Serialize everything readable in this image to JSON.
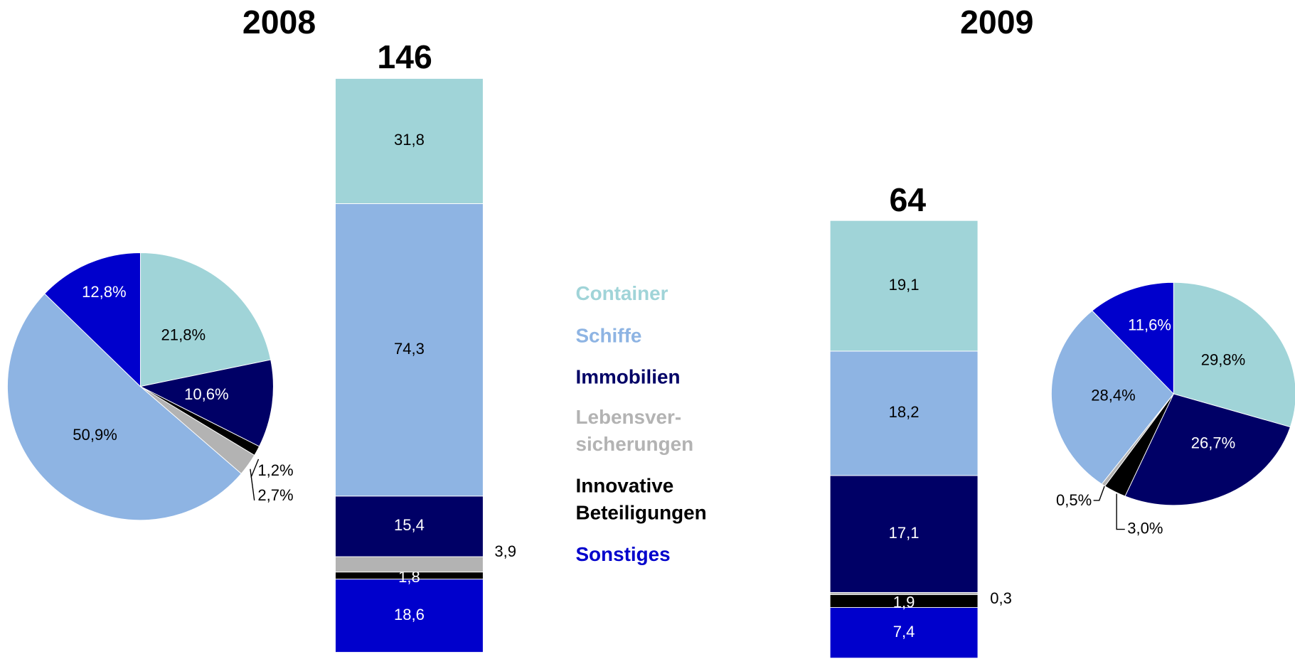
{
  "chart_data": [
    {
      "type": "pie",
      "title": "2008",
      "values": [
        21.8,
        10.6,
        1.2,
        2.7,
        50.9,
        12.8
      ],
      "value_labels": [
        "21,8%",
        "10,6%",
        "1,2%",
        "2,7%",
        "50,9%",
        "12,8%"
      ],
      "colors": [
        "#a0d4d8",
        "#000066",
        "#000000",
        "#b3b3b3",
        "#8eb4e3",
        "#0000cc"
      ]
    },
    {
      "type": "bar",
      "stacked": true,
      "total": 146,
      "series": [
        {
          "name": "Container",
          "color": "#a0d4d8",
          "values": [
            31.8
          ],
          "value_labels": [
            "31,8"
          ]
        },
        {
          "name": "Schiffe",
          "color": "#8eb4e3",
          "values": [
            74.3
          ],
          "value_labels": [
            "74,3"
          ]
        },
        {
          "name": "Immobilien",
          "color": "#000066",
          "values": [
            15.4
          ],
          "value_labels": [
            "15,4"
          ]
        },
        {
          "name": "Lebensver- sicherungen",
          "color": "#b3b3b3",
          "values": [
            3.9
          ],
          "value_labels": [
            "3,9"
          ]
        },
        {
          "name": "Innovative Beteiligungen",
          "color": "#000000",
          "values": [
            1.8
          ],
          "value_labels": [
            "1,8"
          ]
        },
        {
          "name": "Sonstiges",
          "color": "#0000cc",
          "values": [
            18.6
          ],
          "value_labels": [
            "18,6"
          ]
        }
      ]
    },
    {
      "type": "bar",
      "stacked": true,
      "total": 64,
      "series": [
        {
          "color": "#a0d4d8",
          "values": [
            19.1
          ],
          "value_labels": [
            "19,1"
          ]
        },
        {
          "color": "#8eb4e3",
          "values": [
            18.2
          ],
          "value_labels": [
            "18,2"
          ]
        },
        {
          "color": "#000066",
          "values": [
            17.1
          ],
          "value_labels": [
            "17,1"
          ]
        },
        {
          "color": "#b3b3b3",
          "values": [
            0.3
          ],
          "value_labels": [
            "0,3"
          ]
        },
        {
          "color": "#000000",
          "values": [
            1.9
          ],
          "value_labels": [
            "1,9"
          ]
        },
        {
          "color": "#0000cc",
          "values": [
            7.4
          ],
          "value_labels": [
            "7,4"
          ]
        }
      ]
    },
    {
      "type": "pie",
      "title": "2009",
      "values": [
        29.8,
        26.7,
        3.0,
        0.5,
        28.4,
        11.6
      ],
      "value_labels": [
        "29,8%",
        "26,7%",
        "3,0%",
        "0,5%",
        "28,4%",
        "11,6%"
      ],
      "colors": [
        "#a0d4d8",
        "#000066",
        "#000000",
        "#b3b3b3",
        "#8eb4e3",
        "#0000cc"
      ]
    }
  ]
}
